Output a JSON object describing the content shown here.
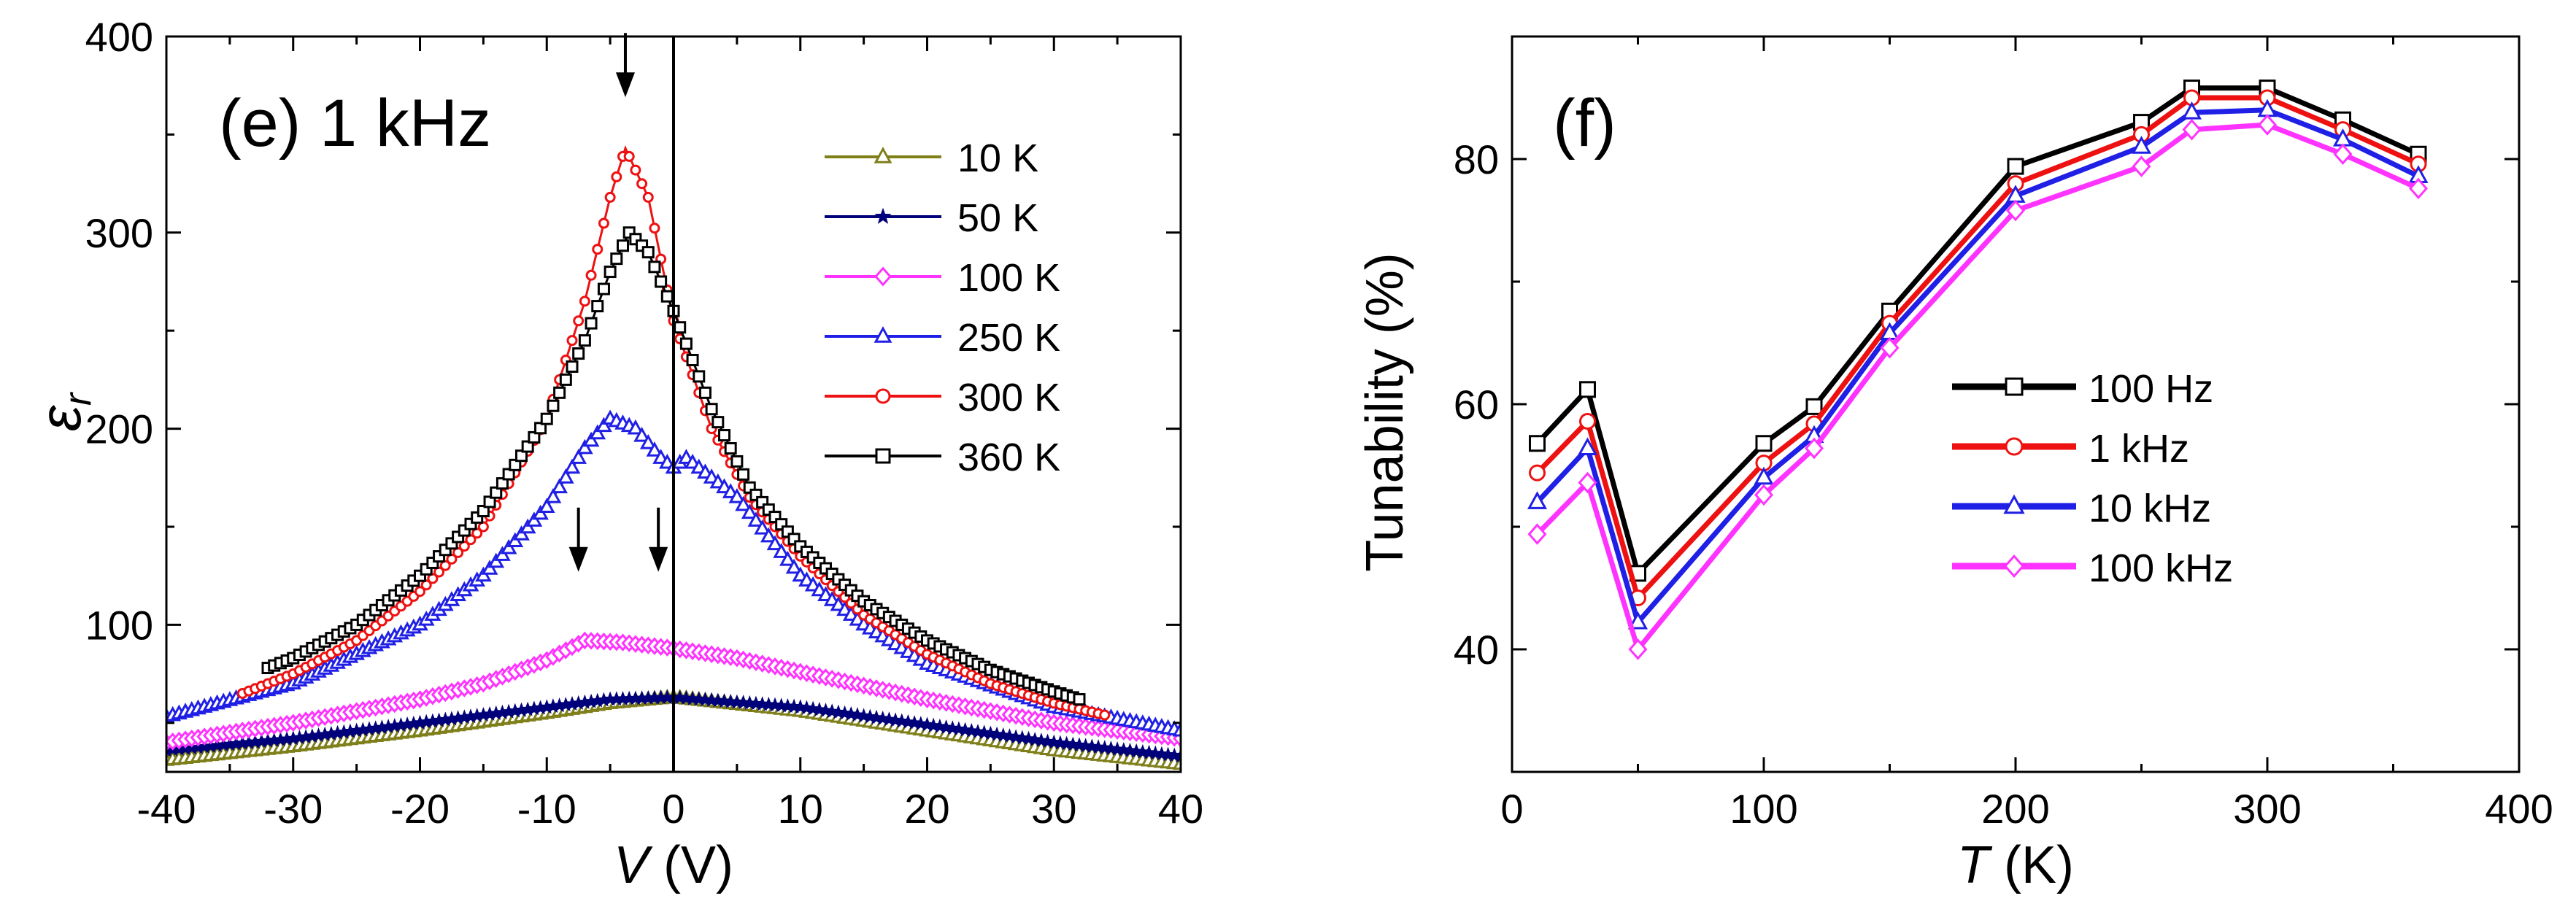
{
  "chart_data": [
    {
      "type": "line",
      "panel_label": "(e) 1 kHz",
      "xlabel": "V",
      "xlabel_unit": "(V)",
      "ylabel": "ε",
      "ylabel_sub": "r",
      "xlim": [
        -40,
        40
      ],
      "ylim": [
        25,
        400
      ],
      "xticks": [
        -40,
        -30,
        -20,
        -10,
        0,
        10,
        20,
        30,
        40
      ],
      "yticks": [
        100,
        200,
        300,
        400
      ],
      "x_tick_labels": [
        "-40",
        "-30",
        "-20",
        "-10",
        "0",
        "10",
        "20",
        "30",
        "40"
      ],
      "y_tick_labels": [
        "100",
        "200",
        "300",
        "400"
      ],
      "vertical_line_at": 0,
      "arrow_annotations": [
        {
          "x": -3.8,
          "y": 372
        },
        {
          "x": -7.5,
          "y": 130
        },
        {
          "x": -1.2,
          "y": 130
        }
      ],
      "series": [
        {
          "name": "10 K",
          "color": "#7f7f1a",
          "marker": "triangle",
          "x": [
            -40,
            -30,
            -20,
            -10,
            -5,
            0,
            10,
            20,
            30,
            40
          ],
          "y": [
            31,
            38,
            46,
            55,
            60,
            63,
            56,
            46,
            36,
            29
          ]
        },
        {
          "name": "50 K",
          "color": "#00007a",
          "marker": "star",
          "x": [
            -40,
            -30,
            -20,
            -10,
            -5,
            0,
            10,
            20,
            30,
            40
          ],
          "y": [
            36,
            42,
            50,
            58,
            62,
            63,
            58,
            49,
            40,
            33
          ]
        },
        {
          "name": "100 K",
          "color": "#ff33ff",
          "marker": "diamond",
          "x": [
            -40,
            -30,
            -20,
            -15,
            -10,
            -7,
            -4,
            0,
            2,
            5,
            10,
            20,
            30,
            40
          ],
          "y": [
            40,
            50,
            62,
            70,
            82,
            92,
            91,
            88,
            86,
            83,
            76,
            62,
            50,
            42
          ]
        },
        {
          "name": "250 K",
          "color": "#1f1fe6",
          "marker": "triangle",
          "x": [
            -40,
            -30,
            -20,
            -15,
            -10,
            -7,
            -5,
            -3,
            -1,
            0,
            1,
            5,
            10,
            15,
            20,
            30,
            40
          ],
          "y": [
            53,
            70,
            100,
            125,
            160,
            190,
            205,
            200,
            185,
            180,
            185,
            165,
            125,
            100,
            80,
            58,
            46
          ]
        },
        {
          "name": "300 K",
          "color": "#ee1111",
          "marker": "circle",
          "x": [
            -34,
            -30,
            -25,
            -20,
            -15,
            -10,
            -7,
            -5,
            -3.8,
            -2,
            0,
            3,
            6,
            10,
            15,
            20,
            25,
            30,
            34
          ],
          "y": [
            65,
            75,
            92,
            117,
            150,
            205,
            265,
            318,
            343,
            318,
            255,
            200,
            165,
            135,
            105,
            85,
            70,
            60,
            54
          ]
        },
        {
          "name": "360 K",
          "color": "#000000",
          "marker": "square",
          "x": [
            -32,
            -30,
            -25,
            -20,
            -15,
            -10,
            -7,
            -5,
            -3.5,
            -2,
            0,
            3,
            6,
            10,
            15,
            20,
            25,
            30,
            32
          ],
          "y": [
            78,
            83,
            100,
            125,
            158,
            205,
            245,
            280,
            300,
            290,
            260,
            210,
            170,
            140,
            112,
            92,
            77,
            66,
            62
          ]
        }
      ],
      "legend_position": "top-right"
    },
    {
      "type": "line",
      "panel_label": "(f)",
      "xlabel": "T",
      "xlabel_unit": "(K)",
      "ylabel": "Tunability (%)",
      "xlim": [
        0,
        400
      ],
      "ylim": [
        30,
        90
      ],
      "xticks": [
        0,
        100,
        200,
        300,
        400
      ],
      "yticks": [
        40,
        60,
        80
      ],
      "x_tick_labels": [
        "0",
        "100",
        "200",
        "300",
        "400"
      ],
      "y_tick_labels": [
        "40",
        "60",
        "80"
      ],
      "x": [
        10,
        30,
        50,
        100,
        120,
        150,
        200,
        250,
        270,
        300,
        330,
        360
      ],
      "series": [
        {
          "name": "100 Hz",
          "color": "#000000",
          "marker": "square",
          "values": [
            56.8,
            61.2,
            46.2,
            56.8,
            59.8,
            67.6,
            79.4,
            83.0,
            85.8,
            85.8,
            83.2,
            80.4
          ]
        },
        {
          "name": "1 kHz",
          "color": "#ee1111",
          "marker": "circle",
          "values": [
            54.4,
            58.6,
            44.2,
            55.2,
            58.4,
            66.6,
            78.0,
            82.0,
            85.0,
            85.0,
            82.4,
            79.6
          ]
        },
        {
          "name": "10 kHz",
          "color": "#1f1fe6",
          "marker": "triangle",
          "values": [
            52.0,
            56.4,
            42.2,
            54.0,
            57.4,
            65.8,
            77.0,
            81.0,
            83.8,
            84.0,
            81.6,
            78.6
          ]
        },
        {
          "name": "100 kHz",
          "color": "#ff33ff",
          "marker": "diamond",
          "values": [
            49.4,
            53.6,
            40.0,
            52.6,
            56.4,
            64.6,
            75.8,
            79.4,
            82.4,
            82.8,
            80.4,
            77.6
          ]
        }
      ],
      "legend_position": "center"
    }
  ]
}
